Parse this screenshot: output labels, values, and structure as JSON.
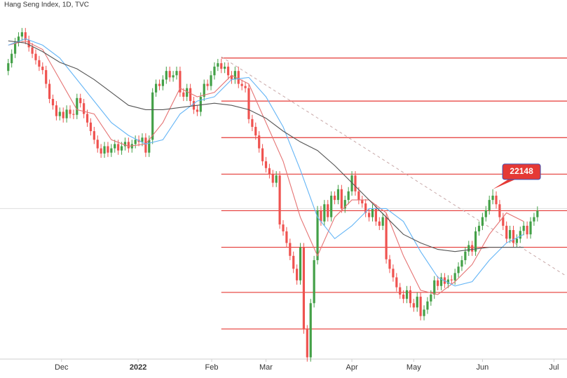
{
  "chart_data": {
    "type": "candlestick",
    "title": "Hang Seng Index, 1D, TVC",
    "up_color": "#43a047",
    "down_color": "#ef5350",
    "open": [
      24900,
      25080,
      25300,
      25570,
      25700,
      25800,
      25620,
      25450,
      25300,
      25150,
      25000,
      24920,
      24600,
      24250,
      24100,
      23850,
      23950,
      23800,
      24000,
      23900,
      23880,
      24270,
      24150,
      23900,
      23700,
      23500,
      23300,
      23100,
      22980,
      23150,
      23000,
      23100,
      23200,
      23050,
      23150,
      23250,
      23100,
      23200,
      23300,
      23250,
      23350,
      23000,
      23300,
      24400,
      24600,
      24550,
      24700,
      24900,
      24750,
      24800,
      24900,
      24400,
      24300,
      24500,
      24200,
      24000,
      23950,
      24300,
      24600,
      24550,
      24800,
      25000,
      25080,
      24950,
      25000,
      24800,
      24700,
      24900,
      24600,
      24550,
      24500,
      23780,
      23600,
      23400,
      23100,
      22800,
      22640,
      22500,
      22300,
      22470,
      21330,
      21170,
      20900,
      20600,
      20300,
      20030,
      20800,
      18890,
      18240,
      19500,
      20500,
      21660,
      21400,
      21800,
      21500,
      22000,
      21900,
      22150,
      21700,
      21900,
      22100,
      22470,
      22100,
      21900,
      21820,
      21600,
      21500,
      21700,
      21400,
      21300,
      21500,
      20520,
      20300,
      20100,
      19870,
      19700,
      19600,
      19800,
      19500,
      19400,
      19650,
      19200,
      19350,
      19540,
      19700,
      20030,
      19900,
      20100,
      19950,
      20050,
      20030,
      20200,
      20350,
      20500,
      20700,
      20850,
      20700,
      21170,
      21300,
      21500,
      21660,
      21900,
      22000,
      21800,
      21500,
      21300,
      21000,
      21200,
      20900,
      21000,
      21180,
      21300,
      21100,
      21400,
      21500
    ],
    "high": [
      25180,
      25400,
      25670,
      25800,
      25900,
      25900,
      25720,
      25550,
      25400,
      25250,
      25100,
      25020,
      24700,
      24350,
      24200,
      24050,
      24050,
      24100,
      24100,
      24000,
      24370,
      24370,
      24250,
      24000,
      23800,
      23600,
      23400,
      23200,
      23250,
      23250,
      23200,
      23300,
      23300,
      23250,
      23350,
      23350,
      23300,
      23400,
      23400,
      23450,
      23450,
      23400,
      24500,
      24700,
      24700,
      24800,
      25000,
      25000,
      24900,
      25000,
      25000,
      24500,
      24600,
      24600,
      24300,
      24100,
      24400,
      24700,
      24700,
      24900,
      25100,
      25180,
      25180,
      25100,
      25100,
      24900,
      25000,
      25000,
      24700,
      24650,
      24600,
      23880,
      23700,
      23500,
      23200,
      22900,
      22740,
      22600,
      22570,
      22570,
      21430,
      21270,
      21000,
      20700,
      20400,
      20900,
      20900,
      18990,
      19600,
      20600,
      21760,
      21760,
      21900,
      21900,
      22100,
      22100,
      22250,
      22250,
      22000,
      22200,
      22570,
      22570,
      22200,
      22000,
      21920,
      21700,
      21800,
      21800,
      21500,
      21600,
      21600,
      20620,
      20400,
      20200,
      19970,
      19800,
      19900,
      19900,
      19600,
      19750,
      19750,
      19450,
      19640,
      19800,
      20130,
      20130,
      20200,
      20200,
      20150,
      20150,
      20300,
      20450,
      20600,
      20800,
      20950,
      20950,
      21270,
      21400,
      21600,
      21760,
      22000,
      22148,
      22100,
      21900,
      21600,
      21400,
      21300,
      21300,
      21100,
      21280,
      21400,
      21400,
      21500,
      21600,
      21750
    ],
    "low": [
      24800,
      24980,
      25200,
      25470,
      25600,
      25520,
      25350,
      25200,
      25050,
      24900,
      24820,
      24500,
      24150,
      24000,
      23750,
      23750,
      23700,
      23700,
      23800,
      23780,
      23780,
      24050,
      23800,
      23600,
      23400,
      23200,
      23000,
      22880,
      22880,
      22900,
      22900,
      23000,
      22950,
      22950,
      23050,
      23000,
      23000,
      23100,
      23150,
      23150,
      22900,
      22900,
      23200,
      24300,
      24450,
      24450,
      24600,
      24650,
      24650,
      24700,
      24300,
      24200,
      24200,
      24100,
      23900,
      23850,
      23850,
      24200,
      24450,
      24450,
      24700,
      24900,
      24850,
      24850,
      24700,
      24600,
      24600,
      24500,
      24450,
      24400,
      23680,
      23500,
      23300,
      23000,
      22700,
      22540,
      22400,
      22200,
      22200,
      21230,
      21070,
      20800,
      20500,
      20200,
      19930,
      19930,
      18790,
      18140,
      18140,
      19400,
      20400,
      21300,
      21300,
      21400,
      21400,
      21800,
      21800,
      21600,
      21600,
      21800,
      22000,
      22000,
      21800,
      21720,
      21500,
      21400,
      21400,
      21300,
      21200,
      21200,
      20420,
      20200,
      20000,
      19770,
      19600,
      19500,
      19500,
      19400,
      19300,
      19300,
      19100,
      19100,
      19250,
      19440,
      19600,
      19800,
      19800,
      19850,
      19850,
      19930,
      19930,
      20100,
      20250,
      20400,
      20600,
      20600,
      20600,
      21070,
      21200,
      21400,
      21560,
      21800,
      21700,
      21400,
      21200,
      20900,
      20900,
      20800,
      20800,
      20900,
      21080,
      21000,
      21000,
      21300,
      21400
    ],
    "close": [
      25080,
      25300,
      25570,
      25700,
      25800,
      25620,
      25450,
      25300,
      25150,
      25000,
      24920,
      24600,
      24250,
      24100,
      23850,
      23950,
      23800,
      24000,
      23900,
      23880,
      24270,
      24150,
      23900,
      23700,
      23500,
      23300,
      23100,
      22980,
      23150,
      23000,
      23100,
      23200,
      23050,
      23150,
      23250,
      23100,
      23200,
      23300,
      23250,
      23350,
      23000,
      23300,
      24400,
      24600,
      24550,
      24700,
      24900,
      24750,
      24800,
      24900,
      24400,
      24300,
      24500,
      24200,
      24000,
      23950,
      24300,
      24600,
      24550,
      24800,
      25000,
      25080,
      24950,
      25000,
      24800,
      24700,
      24900,
      24600,
      24550,
      24500,
      23780,
      23600,
      23400,
      23100,
      22800,
      22640,
      22500,
      22300,
      22470,
      21330,
      21170,
      20900,
      20600,
      20300,
      20030,
      20800,
      18890,
      18240,
      19500,
      20500,
      21660,
      21400,
      21800,
      21500,
      22000,
      21900,
      22150,
      21700,
      21900,
      22100,
      22470,
      22100,
      21900,
      21820,
      21600,
      21500,
      21700,
      21400,
      21300,
      21500,
      20520,
      20300,
      20100,
      19870,
      19700,
      19600,
      19800,
      19500,
      19400,
      19650,
      19200,
      19350,
      19540,
      19700,
      20030,
      19900,
      20100,
      19950,
      20050,
      20030,
      20200,
      20350,
      20500,
      20700,
      20850,
      20700,
      21170,
      21300,
      21500,
      21660,
      21900,
      22000,
      21800,
      21500,
      21300,
      21000,
      21200,
      20900,
      21000,
      21180,
      21300,
      21100,
      21400,
      21500,
      21650
    ],
    "series": [
      {
        "color": "#e57373",
        "x": [
          0,
          5,
          10,
          15,
          20,
          25,
          30,
          35,
          40,
          45,
          50,
          55,
          60,
          65,
          70,
          75,
          80,
          85,
          90,
          95,
          100,
          105,
          110,
          115,
          120,
          125,
          130,
          135,
          140,
          145,
          150
        ],
        "values": [
          25500,
          25600,
          25400,
          24700,
          24000,
          23900,
          23300,
          23150,
          23200,
          23700,
          24500,
          24300,
          24400,
          24800,
          24600,
          23700,
          22800,
          21500,
          20600,
          21500,
          21900,
          21900,
          21600,
          20600,
          19800,
          19700,
          20000,
          20400,
          21100,
          21600,
          21400
        ]
      },
      {
        "color": "#64b5f6",
        "x": [
          0,
          5,
          10,
          15,
          20,
          25,
          30,
          35,
          40,
          45,
          50,
          55,
          60,
          65,
          70,
          75,
          80,
          85,
          90,
          95,
          100,
          105,
          110,
          115,
          120,
          125,
          130,
          135,
          140,
          145,
          150
        ],
        "values": [
          25500,
          25650,
          25500,
          25200,
          24700,
          24200,
          23700,
          23400,
          23200,
          23300,
          23900,
          24200,
          24300,
          24700,
          24750,
          24300,
          23600,
          22600,
          21500,
          21000,
          21300,
          21700,
          21700,
          21400,
          20700,
          20100,
          19900,
          20000,
          20500,
          20900,
          21100
        ]
      },
      {
        "color": "#555555",
        "x": [
          0,
          5,
          10,
          15,
          20,
          25,
          30,
          35,
          40,
          45,
          50,
          55,
          60,
          65,
          70,
          75,
          80,
          85,
          90,
          95,
          100,
          105,
          110,
          115,
          120,
          125,
          130,
          135,
          140,
          145,
          150
        ],
        "values": [
          25600,
          25550,
          25350,
          25100,
          24950,
          24700,
          24400,
          24100,
          24000,
          24000,
          24050,
          24100,
          24150,
          24100,
          24000,
          23800,
          23500,
          23250,
          23050,
          22700,
          22300,
          21900,
          21500,
          21100,
          20900,
          20750,
          20700,
          20750,
          20800,
          20800,
          20800
        ]
      }
    ],
    "levels": [
      25200,
      24200,
      23350,
      22500,
      21650,
      20800,
      19750,
      18900
    ],
    "level_start": 62,
    "level_color": "#e53935",
    "price_line": 21700,
    "trendline": {
      "x": [
        62,
        162
      ],
      "values": [
        25230,
        20150
      ]
    },
    "annotations": [
      {
        "x": 141,
        "value": 22148
      }
    ],
    "xlim": [
      -2.4,
      162.6
    ],
    "ylim": [
      18200,
      26550
    ],
    "xticks": [
      {
        "value": 15.5,
        "label": "Dec"
      },
      {
        "value": 37.8,
        "label": "2022"
      },
      {
        "value": 59.2,
        "label": "Feb"
      },
      {
        "value": 75,
        "label": "Mar"
      },
      {
        "value": 100,
        "label": "Apr"
      },
      {
        "value": 118,
        "label": "May"
      },
      {
        "value": 138,
        "label": "Jun"
      },
      {
        "value": 158.8,
        "label": "Jul"
      }
    ]
  }
}
